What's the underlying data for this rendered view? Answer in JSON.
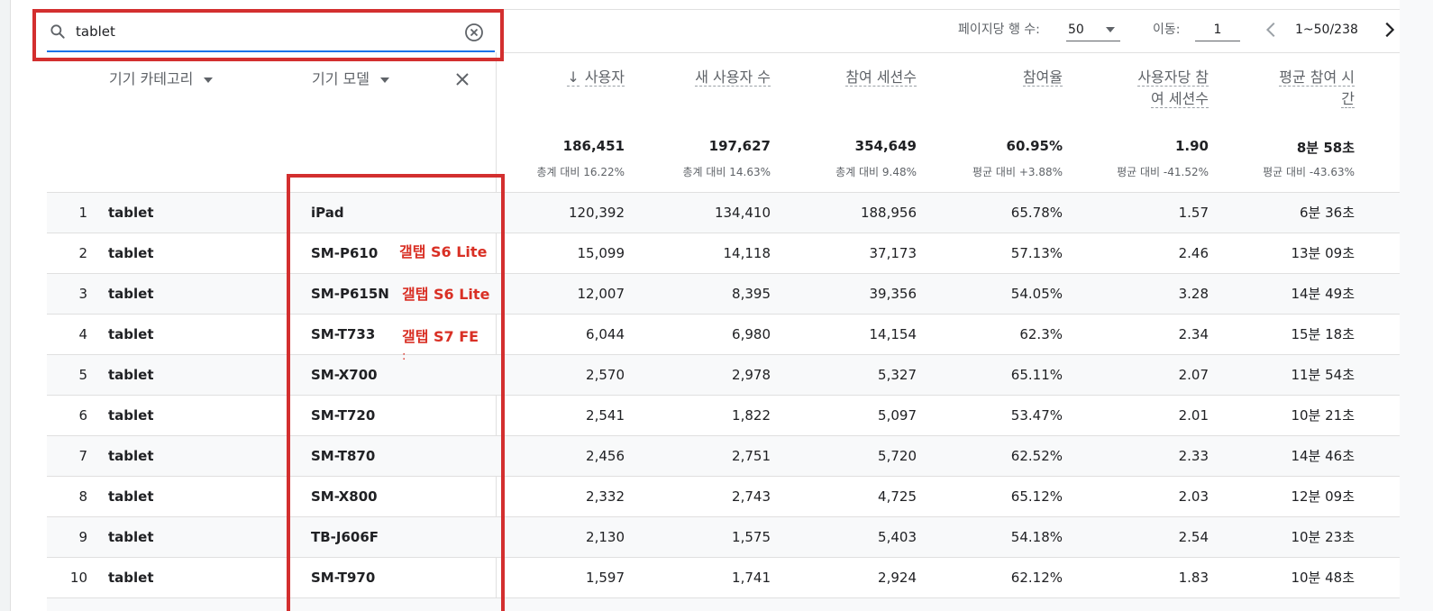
{
  "search": {
    "value": "tablet"
  },
  "pagination": {
    "rows_per_page_label": "페이지당 행 수:",
    "rows_per_page_value": "50",
    "goto_label": "이동:",
    "goto_value": "1",
    "range": "1~50/238"
  },
  "dimensions": {
    "category_label": "기기 카테고리",
    "model_label": "기기 모델"
  },
  "metrics": [
    {
      "label": "사용자",
      "sorted": true,
      "total": "186,451",
      "sub": "총계 대비 16.22%"
    },
    {
      "label": "새 사용자 수",
      "total": "197,627",
      "sub": "총계 대비 14.63%"
    },
    {
      "label": "참여 세션수",
      "total": "354,649",
      "sub": "총계 대비 9.48%"
    },
    {
      "label": "참여율",
      "total": "60.95%",
      "sub": "평균 대비 +3.88%"
    },
    {
      "label": "사용자당 참",
      "label2": "여 세션수",
      "total": "1.90",
      "sub": "평균 대비 -41.52%"
    },
    {
      "label": "평균 참여 시",
      "label2": "간",
      "total": "8분 58초",
      "sub": "평균 대비 -43.63%"
    }
  ],
  "rows": [
    {
      "idx": "1",
      "category": "tablet",
      "model": "iPad",
      "values": [
        "120,392",
        "134,410",
        "188,956",
        "65.78%",
        "1.57",
        "6분 36초"
      ]
    },
    {
      "idx": "2",
      "category": "tablet",
      "model": "SM-P610",
      "values": [
        "15,099",
        "14,118",
        "37,173",
        "57.13%",
        "2.46",
        "13분 09초"
      ]
    },
    {
      "idx": "3",
      "category": "tablet",
      "model": "SM-P615N",
      "values": [
        "12,007",
        "8,395",
        "39,356",
        "54.05%",
        "3.28",
        "14분 49초"
      ]
    },
    {
      "idx": "4",
      "category": "tablet",
      "model": "SM-T733",
      "values": [
        "6,044",
        "6,980",
        "14,154",
        "62.3%",
        "2.34",
        "15분 18초"
      ]
    },
    {
      "idx": "5",
      "category": "tablet",
      "model": "SM-X700",
      "values": [
        "2,570",
        "2,978",
        "5,327",
        "65.11%",
        "2.07",
        "11분 54초"
      ]
    },
    {
      "idx": "6",
      "category": "tablet",
      "model": "SM-T720",
      "values": [
        "2,541",
        "1,822",
        "5,097",
        "53.47%",
        "2.01",
        "10분 21초"
      ]
    },
    {
      "idx": "7",
      "category": "tablet",
      "model": "SM-T870",
      "values": [
        "2,456",
        "2,751",
        "5,720",
        "62.52%",
        "2.33",
        "14분 46초"
      ]
    },
    {
      "idx": "8",
      "category": "tablet",
      "model": "SM-X800",
      "values": [
        "2,332",
        "2,743",
        "4,725",
        "65.12%",
        "2.03",
        "12분 09초"
      ]
    },
    {
      "idx": "9",
      "category": "tablet",
      "model": "TB-J606F",
      "values": [
        "2,130",
        "1,575",
        "5,403",
        "54.18%",
        "2.54",
        "10분 23초"
      ]
    },
    {
      "idx": "10",
      "category": "tablet",
      "model": "SM-T970",
      "values": [
        "1,597",
        "1,741",
        "2,924",
        "62.12%",
        "1.83",
        "10분 48초"
      ]
    }
  ],
  "annotations": {
    "note1": "갤탭 S6 Lite",
    "note2": "갤탭 S6 Lite",
    "note3": "갤탭 S7 FE",
    "note4": ":"
  },
  "colors": {
    "accent": "#1a73e8",
    "highlight": "#d32f2f",
    "annotation": "#d93025"
  },
  "icons": [
    "search-icon",
    "clear-circle-icon",
    "dropdown-caret-icon",
    "close-icon",
    "chevron-left-icon",
    "chevron-right-icon",
    "arrow-down-icon"
  ]
}
